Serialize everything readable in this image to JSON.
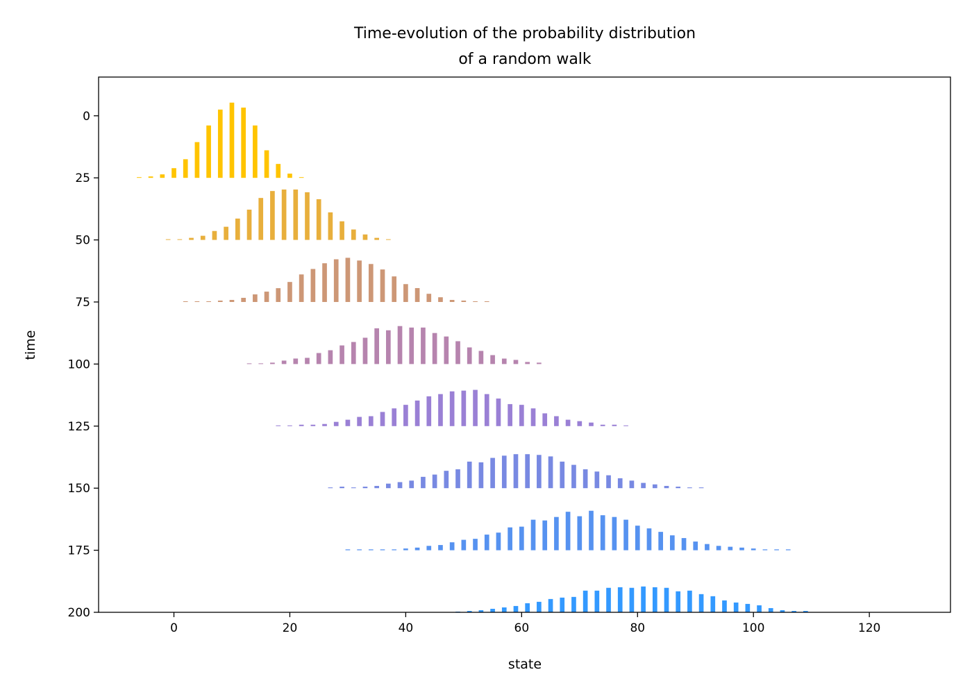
{
  "chart_data": {
    "type": "bar",
    "title": [
      "Time-evolution of the probability distribution",
      "of a random walk"
    ],
    "xlabel": "state",
    "ylabel": "time",
    "xlim": [
      -13,
      134
    ],
    "ylim": [
      200,
      -15.6
    ],
    "y_inverted": true,
    "grid": false,
    "xticks": [
      0,
      20,
      40,
      60,
      80,
      100,
      120
    ],
    "yticks": [
      0,
      25,
      50,
      75,
      100,
      125,
      150,
      175,
      200
    ],
    "bar_width": 0.8,
    "series": [
      {
        "time": 25,
        "color": "#ffc400",
        "x_start": -6,
        "x_step": 2,
        "values": [
          0.28,
          0.56,
          1.4,
          3.9,
          7.5,
          14.4,
          21.1,
          27.5,
          30.3,
          28.3,
          21.1,
          11.1,
          5.6,
          1.7,
          0.28
        ]
      },
      {
        "time": 50,
        "color": "#e8af3c",
        "x_start": -1,
        "x_step": 2,
        "values": [
          0.28,
          0.28,
          0.83,
          1.67,
          3.6,
          5.3,
          8.6,
          12.2,
          16.9,
          19.7,
          20.3,
          20.3,
          19.2,
          16.4,
          11.1,
          7.5,
          4.2,
          2.2,
          0.83,
          0.28
        ]
      },
      {
        "time": 75,
        "color": "#cd9776",
        "x_start": 2,
        "x_step": 2,
        "values": [
          0.28,
          0.28,
          0.28,
          0.56,
          0.83,
          1.67,
          3.06,
          4.17,
          5.56,
          8.06,
          11.1,
          13.3,
          15.6,
          17.2,
          17.8,
          16.7,
          15.3,
          13.1,
          10.3,
          7.2,
          5.6,
          3.3,
          1.9,
          0.83,
          0.56,
          0.28,
          0.28
        ]
      },
      {
        "time": 100,
        "color": "#b684ae",
        "x_start": 13,
        "x_step": 2,
        "values": [
          0.28,
          0.28,
          0.56,
          1.39,
          2.22,
          2.5,
          4.44,
          5.56,
          7.5,
          8.89,
          10.6,
          14.4,
          13.6,
          15.3,
          14.7,
          14.7,
          12.5,
          11.1,
          9.2,
          6.7,
          5.3,
          3.6,
          2.2,
          1.67,
          0.83,
          0.56
        ]
      },
      {
        "time": 125,
        "color": "#9a80d5",
        "x_start": 18,
        "x_step": 2,
        "values": [
          0.29,
          0.29,
          0.57,
          0.57,
          0.86,
          1.71,
          2.57,
          3.71,
          4.0,
          5.71,
          7.14,
          8.57,
          10.3,
          12.0,
          12.9,
          14.0,
          14.3,
          14.6,
          12.9,
          11.1,
          8.86,
          8.57,
          7.14,
          5.14,
          4.0,
          2.57,
          2.0,
          1.43,
          0.57,
          0.57,
          0.29
        ]
      },
      {
        "time": 150,
        "color": "#7889e2",
        "x_start": 27,
        "x_step": 2,
        "values": [
          0.3,
          0.61,
          0.3,
          0.61,
          0.91,
          1.83,
          2.44,
          3.05,
          4.57,
          5.48,
          7.0,
          7.6,
          10.7,
          10.4,
          12.2,
          13.1,
          13.7,
          13.7,
          13.4,
          12.8,
          10.7,
          9.4,
          7.6,
          6.7,
          5.2,
          4.0,
          3.05,
          2.13,
          1.52,
          0.91,
          0.61,
          0.3,
          0.3
        ]
      },
      {
        "time": 175,
        "color": "#5692f0",
        "x_start": 30,
        "x_step": 2,
        "values": [
          0.35,
          0.35,
          0.35,
          0.35,
          0.35,
          0.7,
          1.06,
          1.76,
          2.1,
          3.2,
          4.2,
          4.6,
          6.3,
          7.1,
          9.2,
          9.5,
          12.3,
          12.0,
          13.4,
          15.5,
          13.7,
          15.9,
          14.1,
          13.4,
          12.3,
          9.9,
          8.8,
          7.4,
          6.0,
          4.9,
          3.5,
          2.5,
          1.76,
          1.4,
          1.06,
          0.7,
          0.35,
          0.35,
          0.35
        ]
      },
      {
        "time": 200,
        "color": "#3399ff",
        "x_start": 49,
        "x_step": 2,
        "values": [
          0.28,
          0.56,
          0.85,
          1.41,
          1.97,
          2.54,
          3.66,
          4.23,
          5.35,
          5.92,
          6.2,
          8.73,
          8.73,
          9.86,
          10.1,
          9.86,
          10.4,
          10.1,
          9.86,
          8.45,
          8.73,
          7.32,
          6.48,
          4.79,
          3.94,
          3.38,
          2.82,
          1.69,
          0.85,
          0.56,
          0.56
        ]
      }
    ]
  }
}
